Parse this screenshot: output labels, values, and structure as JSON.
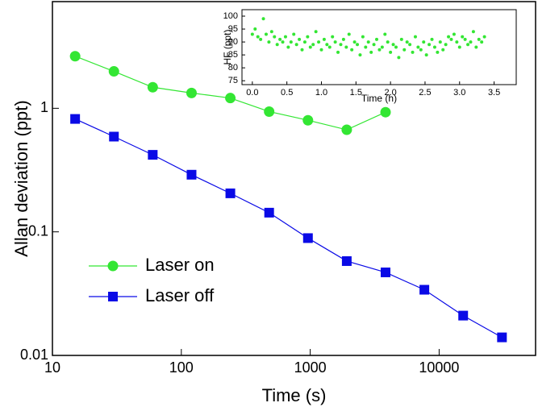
{
  "chart_data": [
    {
      "type": "line",
      "xlabel": "Time (s)",
      "ylabel": "Allan deviation (ppt)",
      "xscale": "log",
      "yscale": "log",
      "xlim": [
        10,
        56000
      ],
      "ylim": [
        0.01,
        7.3
      ],
      "xticks": [
        10,
        100,
        1000,
        10000
      ],
      "yticks": [
        0.01,
        0.1,
        1
      ],
      "legend": "lower left",
      "series": [
        {
          "name": "Laser on",
          "color": "#33e633",
          "marker": "circle",
          "x": [
            15,
            30,
            60,
            120,
            240,
            480,
            960,
            1920,
            3840
          ],
          "values": [
            2.64,
            1.99,
            1.48,
            1.33,
            1.21,
            0.94,
            0.8,
            0.67,
            0.93
          ]
        },
        {
          "name": "Laser off",
          "color": "#0a0ae6",
          "marker": "square",
          "x": [
            15,
            30,
            60,
            120,
            240,
            480,
            960,
            1920,
            3840,
            7680,
            15360,
            30720
          ],
          "values": [
            0.82,
            0.59,
            0.42,
            0.29,
            0.205,
            0.143,
            0.089,
            0.058,
            0.047,
            0.034,
            0.021,
            0.014
          ]
        }
      ]
    },
    {
      "type": "scatter",
      "xlabel": "Time (h)",
      "ylabel": "HF (ppt)",
      "xlim": [
        -0.15,
        3.82
      ],
      "ylim": [
        73.5,
        102.5
      ],
      "xticks": [
        {
          "value": 0,
          "label": "0.0"
        },
        0.5,
        {
          "value": 1,
          "label": "1.0"
        },
        1.5,
        {
          "value": 2,
          "label": "2.0"
        },
        2.5,
        {
          "value": 3,
          "label": "3.0"
        },
        3.5
      ],
      "yticks": [
        75,
        80,
        85,
        90,
        95,
        100
      ],
      "color": "#33e633",
      "x": [
        0,
        0.04,
        0.08,
        0.12,
        0.16,
        0.2,
        0.24,
        0.28,
        0.32,
        0.36,
        0.4,
        0.44,
        0.48,
        0.52,
        0.56,
        0.6,
        0.64,
        0.68,
        0.72,
        0.76,
        0.8,
        0.84,
        0.88,
        0.92,
        0.96,
        1,
        1.04,
        1.08,
        1.12,
        1.16,
        1.2,
        1.24,
        1.28,
        1.32,
        1.36,
        1.4,
        1.44,
        1.48,
        1.52,
        1.56,
        1.6,
        1.64,
        1.68,
        1.72,
        1.76,
        1.8,
        1.84,
        1.88,
        1.92,
        1.96,
        2,
        2.04,
        2.08,
        2.12,
        2.16,
        2.2,
        2.24,
        2.28,
        2.32,
        2.36,
        2.4,
        2.44,
        2.48,
        2.52,
        2.56,
        2.6,
        2.64,
        2.68,
        2.72,
        2.76,
        2.8,
        2.84,
        2.88,
        2.92,
        2.96,
        3,
        3.04,
        3.08,
        3.12,
        3.16,
        3.2,
        3.24,
        3.28,
        3.32,
        3.36
      ],
      "values": [
        93,
        95,
        92,
        91,
        99,
        93,
        90,
        94,
        92,
        89,
        91,
        90,
        92,
        88,
        90,
        93,
        89,
        91,
        87,
        90,
        92,
        88,
        89,
        94,
        90,
        87,
        91,
        89,
        88,
        92,
        90,
        86,
        89,
        91,
        88,
        93,
        87,
        90,
        89,
        85,
        92,
        88,
        90,
        86,
        89,
        91,
        87,
        88,
        93,
        90,
        86,
        89,
        88,
        84,
        91,
        87,
        90,
        89,
        86,
        92,
        88,
        87,
        90,
        85,
        89,
        91,
        88,
        86,
        90,
        87,
        89,
        92,
        91,
        93,
        90,
        88,
        92,
        91,
        89,
        90,
        94,
        88,
        91,
        90,
        92
      ]
    }
  ]
}
